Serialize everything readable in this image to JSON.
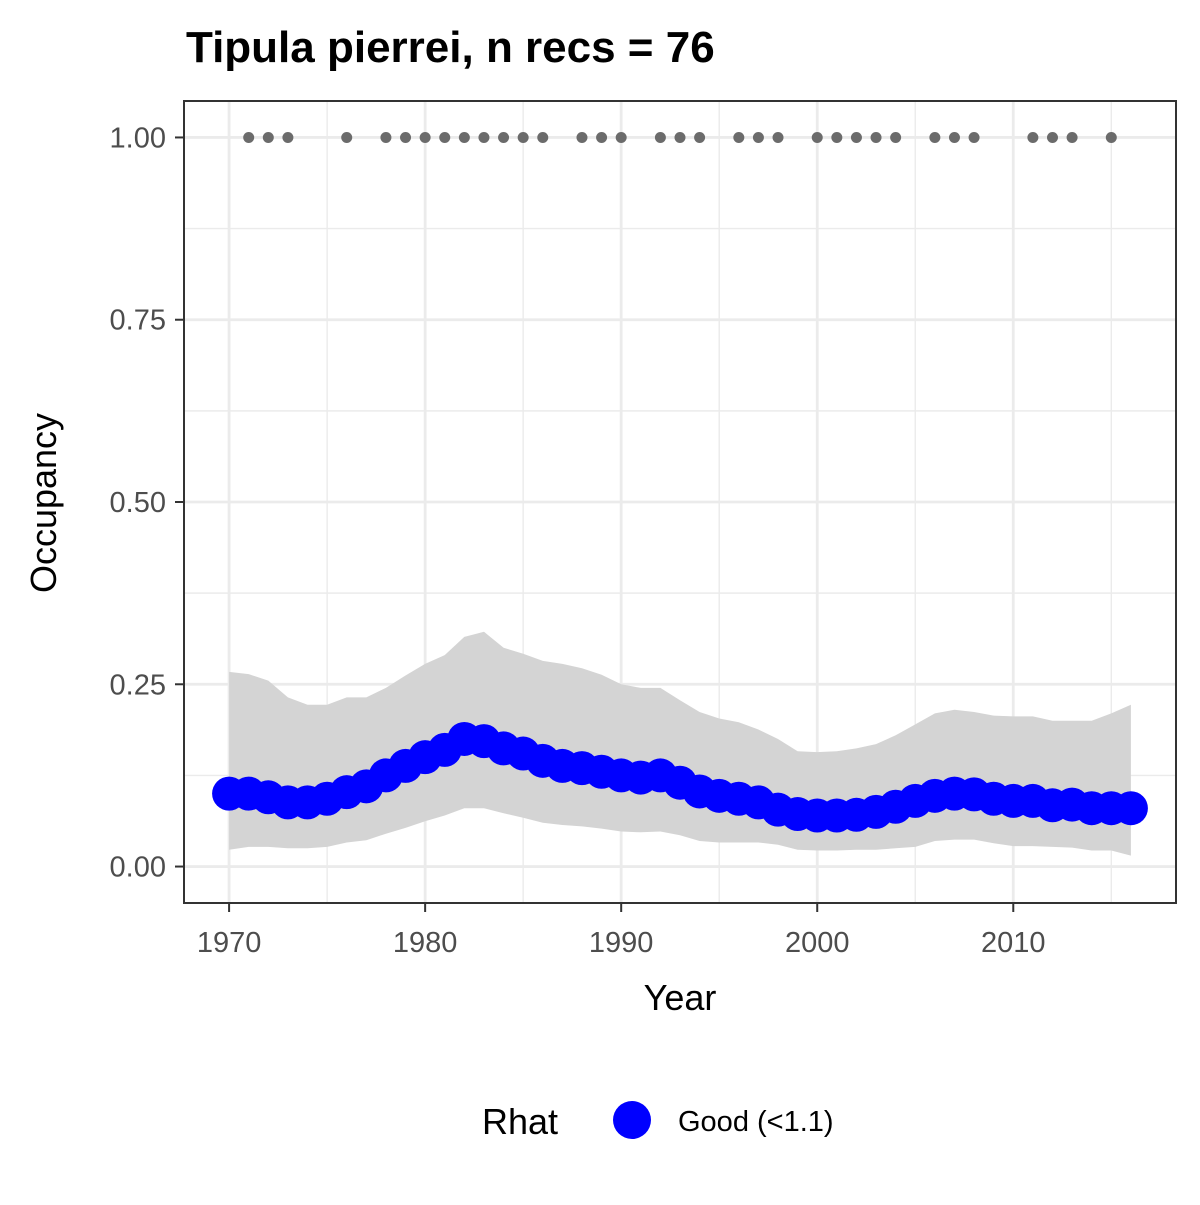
{
  "chart_data": {
    "type": "line",
    "title": "Tipula pierrei, n recs = 76",
    "xlabel": "Year",
    "ylabel": "Occupancy",
    "xlim": [
      1967.7,
      2018.3
    ],
    "ylim": [
      -0.05,
      1.05
    ],
    "x_ticks": [
      1970,
      1980,
      1990,
      2000,
      2010
    ],
    "x_tick_labels": [
      "1970",
      "1980",
      "1990",
      "2000",
      "2010"
    ],
    "y_ticks": [
      0,
      0.25,
      0.5,
      0.75,
      1
    ],
    "y_tick_labels": [
      "0.00",
      "0.25",
      "0.50",
      "0.75",
      "1.00"
    ],
    "x_minor_ticks": [
      1975,
      1985,
      1995,
      2005,
      2015
    ],
    "y_minor_ticks": [
      0.125,
      0.375,
      0.625,
      0.875
    ],
    "grid": true,
    "legend": {
      "title": "Rhat",
      "position": "bottom",
      "entries": [
        {
          "label": "Good (<1.1)",
          "color": "#0000ff"
        }
      ]
    },
    "colors": {
      "occupancy": "#0000ff",
      "ribbon": "#d4d4d4",
      "records": "#6b6b6b",
      "grid": "#ebebeb",
      "border": "#333333"
    },
    "series": [
      {
        "kind": "occupancy-mean",
        "x": [
          1970,
          1971,
          1972,
          1973,
          1974,
          1975,
          1976,
          1977,
          1978,
          1979,
          1980,
          1981,
          1982,
          1983,
          1984,
          1985,
          1986,
          1987,
          1988,
          1989,
          1990,
          1991,
          1992,
          1993,
          1994,
          1995,
          1996,
          1997,
          1998,
          1999,
          2000,
          2001,
          2002,
          2003,
          2004,
          2005,
          2006,
          2007,
          2008,
          2009,
          2010,
          2011,
          2012,
          2013,
          2014,
          2015,
          2016
        ],
        "y": [
          0.1,
          0.1,
          0.095,
          0.088,
          0.088,
          0.093,
          0.102,
          0.11,
          0.125,
          0.138,
          0.15,
          0.16,
          0.175,
          0.172,
          0.162,
          0.155,
          0.145,
          0.138,
          0.135,
          0.13,
          0.125,
          0.122,
          0.125,
          0.115,
          0.103,
          0.097,
          0.093,
          0.088,
          0.078,
          0.072,
          0.07,
          0.07,
          0.071,
          0.075,
          0.082,
          0.09,
          0.097,
          0.1,
          0.099,
          0.093,
          0.09,
          0.09,
          0.084,
          0.085,
          0.08,
          0.08,
          0.08
        ]
      },
      {
        "kind": "ci-upper",
        "x": [
          1970,
          1971,
          1972,
          1973,
          1974,
          1975,
          1976,
          1977,
          1978,
          1979,
          1980,
          1981,
          1982,
          1983,
          1984,
          1985,
          1986,
          1987,
          1988,
          1989,
          1990,
          1991,
          1992,
          1993,
          1994,
          1995,
          1996,
          1997,
          1998,
          1999,
          2000,
          2001,
          2002,
          2003,
          2004,
          2005,
          2006,
          2007,
          2008,
          2009,
          2010,
          2011,
          2012,
          2013,
          2014,
          2015,
          2016
        ],
        "y": [
          0.267,
          0.264,
          0.255,
          0.232,
          0.222,
          0.222,
          0.232,
          0.232,
          0.245,
          0.262,
          0.278,
          0.29,
          0.315,
          0.322,
          0.3,
          0.292,
          0.282,
          0.278,
          0.272,
          0.263,
          0.25,
          0.245,
          0.245,
          0.228,
          0.212,
          0.203,
          0.198,
          0.188,
          0.175,
          0.158,
          0.157,
          0.158,
          0.162,
          0.168,
          0.18,
          0.195,
          0.21,
          0.215,
          0.212,
          0.207,
          0.206,
          0.206,
          0.2,
          0.2,
          0.2,
          0.21,
          0.222
        ]
      },
      {
        "kind": "ci-lower",
        "x": [
          1970,
          1971,
          1972,
          1973,
          1974,
          1975,
          1976,
          1977,
          1978,
          1979,
          1980,
          1981,
          1982,
          1983,
          1984,
          1985,
          1986,
          1987,
          1988,
          1989,
          1990,
          1991,
          1992,
          1993,
          1994,
          1995,
          1996,
          1997,
          1998,
          1999,
          2000,
          2001,
          2002,
          2003,
          2004,
          2005,
          2006,
          2007,
          2008,
          2009,
          2010,
          2011,
          2012,
          2013,
          2014,
          2015,
          2016
        ],
        "y": [
          0.023,
          0.027,
          0.027,
          0.025,
          0.025,
          0.027,
          0.033,
          0.036,
          0.045,
          0.053,
          0.062,
          0.07,
          0.08,
          0.08,
          0.073,
          0.067,
          0.06,
          0.057,
          0.055,
          0.052,
          0.048,
          0.047,
          0.048,
          0.043,
          0.035,
          0.033,
          0.033,
          0.033,
          0.03,
          0.023,
          0.022,
          0.022,
          0.023,
          0.023,
          0.025,
          0.027,
          0.035,
          0.037,
          0.037,
          0.032,
          0.028,
          0.028,
          0.027,
          0.026,
          0.022,
          0.022,
          0.015
        ]
      },
      {
        "kind": "records",
        "x": [
          1971,
          1972,
          1973,
          1976,
          1978,
          1979,
          1980,
          1981,
          1982,
          1983,
          1984,
          1985,
          1986,
          1988,
          1989,
          1990,
          1992,
          1993,
          1994,
          1996,
          1997,
          1998,
          2000,
          2001,
          2002,
          2003,
          2004,
          2006,
          2007,
          2008,
          2011,
          2012,
          2013,
          2015
        ],
        "y": [
          1,
          1,
          1,
          1,
          1,
          1,
          1,
          1,
          1,
          1,
          1,
          1,
          1,
          1,
          1,
          1,
          1,
          1,
          1,
          1,
          1,
          1,
          1,
          1,
          1,
          1,
          1,
          1,
          1,
          1,
          1,
          1,
          1,
          1
        ]
      }
    ]
  }
}
